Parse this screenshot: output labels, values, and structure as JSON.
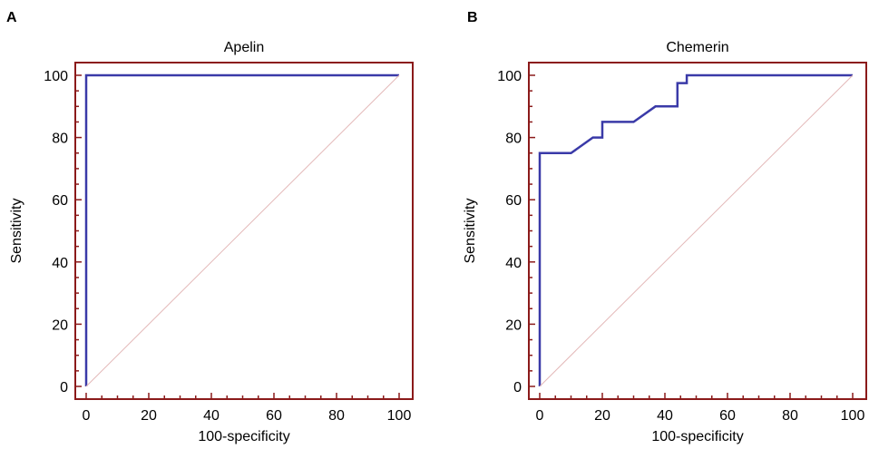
{
  "chart_data": [
    {
      "panel": "A",
      "type": "line",
      "title": "Apelin",
      "xlabel": "100-specificity",
      "ylabel": "Sensitivity",
      "xlim": [
        0,
        100
      ],
      "ylim": [
        0,
        100
      ],
      "xticks": [
        0,
        20,
        40,
        60,
        80,
        100
      ],
      "yticks": [
        0,
        20,
        40,
        60,
        80,
        100
      ],
      "series": [
        {
          "style": "step",
          "color": "#3a3aa8",
          "x": [
            0,
            0,
            100
          ],
          "y": [
            0,
            100,
            100
          ]
        },
        {
          "style": "reference",
          "color": "#e3b8b8",
          "x": [
            0,
            100
          ],
          "y": [
            0,
            100
          ]
        }
      ],
      "frame_color": "#8b1a1a"
    },
    {
      "panel": "B",
      "type": "line",
      "title": "Chemerin",
      "xlabel": "100-specificity",
      "ylabel": "Sensitivity",
      "xlim": [
        0,
        100
      ],
      "ylim": [
        0,
        100
      ],
      "xticks": [
        0,
        20,
        40,
        60,
        80,
        100
      ],
      "yticks": [
        0,
        20,
        40,
        60,
        80,
        100
      ],
      "series": [
        {
          "style": "step",
          "color": "#3a3aa8",
          "x": [
            0,
            0,
            10,
            17,
            20,
            20,
            30,
            37,
            44,
            44,
            47,
            47,
            100
          ],
          "y": [
            0,
            75,
            75,
            80,
            80,
            85,
            85,
            90,
            90,
            97.5,
            97.5,
            100,
            100
          ]
        },
        {
          "style": "reference",
          "color": "#e3b8b8",
          "x": [
            0,
            100
          ],
          "y": [
            0,
            100
          ]
        }
      ],
      "frame_color": "#8b1a1a"
    }
  ]
}
